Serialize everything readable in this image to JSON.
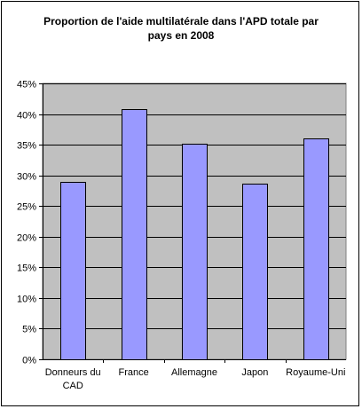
{
  "chart_data": {
    "type": "bar",
    "title_lines": [
      "Proportion de l'aide multilatérale dans l'APD totale par",
      "pays en 2008"
    ],
    "categories": [
      [
        "Donneurs du",
        "CAD"
      ],
      [
        "France"
      ],
      [
        "Allemagne"
      ],
      [
        "Japon"
      ],
      [
        "Royaume-Uni"
      ]
    ],
    "values": [
      28.9,
      40.8,
      35.1,
      28.7,
      36.0
    ],
    "ylim": [
      0,
      45
    ],
    "yticks": [
      0,
      5,
      10,
      15,
      20,
      25,
      30,
      35,
      40,
      45
    ],
    "ytick_labels": [
      "0%",
      "5%",
      "10%",
      "15%",
      "20%",
      "25%",
      "30%",
      "35%",
      "40%",
      "45%"
    ],
    "grid": true,
    "colors": {
      "plot_background": "#c0c0c0",
      "bar_fill": "#9999ff",
      "bar_stroke": "#000000",
      "grid": "#000000"
    }
  }
}
